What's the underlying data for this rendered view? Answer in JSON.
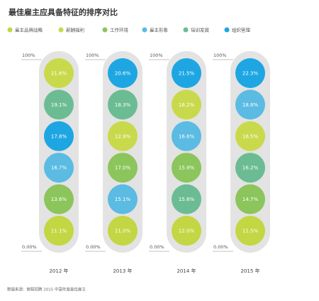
{
  "chart_data": {
    "type": "pill-columns",
    "title": "最佳雇主应具备特征的排序对比",
    "legend": [
      {
        "label": "雇主品牌战略",
        "color": "#c3d643"
      },
      {
        "label": "薪酬福利",
        "color": "#c9d94c"
      },
      {
        "label": "工作环境",
        "color": "#8cc55c"
      },
      {
        "label": "雇主形象",
        "color": "#5bbbe2"
      },
      {
        "label": "培训发展",
        "color": "#6cbc93"
      },
      {
        "label": "组织管理",
        "color": "#1ea6e3"
      }
    ],
    "columns": [
      {
        "label": "2012 年",
        "top_label": "100%",
        "bottom_label": "0.00%",
        "items": [
          {
            "value": 21.6,
            "label": "21.6%",
            "color": "#c9d94c"
          },
          {
            "value": 19.1,
            "label": "19.1%",
            "color": "#6cbc93"
          },
          {
            "value": 17.8,
            "label": "17.8%",
            "color": "#1ea6e3"
          },
          {
            "value": 16.7,
            "label": "16.7%",
            "color": "#5bbbe2"
          },
          {
            "value": 13.6,
            "label": "13.6%",
            "color": "#8cc55c"
          },
          {
            "value": 11.1,
            "label": "11.1%",
            "color": "#c3d643"
          }
        ]
      },
      {
        "label": "2013 年",
        "top_label": "100%",
        "bottom_label": "0.00%",
        "items": [
          {
            "value": 20.6,
            "label": "20.6%",
            "color": "#1ea6e3"
          },
          {
            "value": 18.3,
            "label": "18.3%",
            "color": "#6cbc93"
          },
          {
            "value": 12.9,
            "label": "12.9%",
            "color": "#c9d94c"
          },
          {
            "value": 17.0,
            "label": "17.0%",
            "color": "#8cc55c"
          },
          {
            "value": 15.1,
            "label": "15.1%",
            "color": "#5bbbe2"
          },
          {
            "value": 11.0,
            "label": "11.0%",
            "color": "#c3d643"
          }
        ]
      },
      {
        "label": "2014 年",
        "top_label": "100%",
        "bottom_label": "0.00%",
        "items": [
          {
            "value": 21.5,
            "label": "21.5%",
            "color": "#1ea6e3"
          },
          {
            "value": 18.2,
            "label": "18.2%",
            "color": "#c9d94c"
          },
          {
            "value": 16.6,
            "label": "16.6%",
            "color": "#5bbbe2"
          },
          {
            "value": 15.9,
            "label": "15.9%",
            "color": "#8cc55c"
          },
          {
            "value": 15.8,
            "label": "15.8%",
            "color": "#6cbc93"
          },
          {
            "value": 12.0,
            "label": "12.0%",
            "color": "#c3d643"
          }
        ]
      },
      {
        "label": "2015 年",
        "top_label": "100%",
        "bottom_label": "0.00%",
        "items": [
          {
            "value": 22.3,
            "label": "22.3%",
            "color": "#1ea6e3"
          },
          {
            "value": 18.8,
            "label": "18.8%",
            "color": "#5bbbe2"
          },
          {
            "value": 16.5,
            "label": "16.5%",
            "color": "#c9d94c"
          },
          {
            "value": 16.2,
            "label": "16.2%",
            "color": "#6cbc93"
          },
          {
            "value": 14.7,
            "label": "14.7%",
            "color": "#8cc55c"
          },
          {
            "value": 11.5,
            "label": "11.5%",
            "color": "#c3d643"
          }
        ]
      }
    ],
    "source": "数据来源：智联招聘 2015 中国年度最佳雇主"
  }
}
